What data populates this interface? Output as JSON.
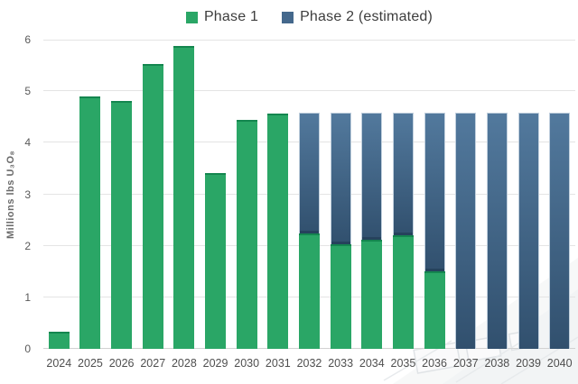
{
  "legend": {
    "items": [
      {
        "label": "Phase 1",
        "color": "#2aa666"
      },
      {
        "label": "Phase 2 (estimated)",
        "color": "#44688c"
      }
    ]
  },
  "colors": {
    "phase1_fill": "#2aa666",
    "phase1_cap": "#14864f",
    "phase2_gradient_top": "#52799d",
    "phase2_gradient_bottom": "#31506e",
    "phase2_legend_swatch": "#44688c",
    "gridline": "#e4e4e4",
    "axis_text": "#595959",
    "legend_text": "#3d3d3d"
  },
  "chart_data": {
    "type": "bar",
    "stacked": true,
    "title": "",
    "xlabel": "",
    "ylabel": "Millions lbs U₃O₈",
    "ylim": [
      0,
      6
    ],
    "yticks": [
      0,
      1,
      2,
      3,
      4,
      5,
      6
    ],
    "grid": true,
    "legend_position": "top-center",
    "categories": [
      "2024",
      "2025",
      "2026",
      "2027",
      "2028",
      "2029",
      "2030",
      "2031",
      "2032",
      "2033",
      "2034",
      "2035",
      "2036",
      "2037",
      "2038",
      "2039",
      "2040"
    ],
    "series": [
      {
        "name": "Phase 1",
        "values": [
          0.33,
          4.9,
          4.81,
          5.52,
          5.87,
          3.42,
          4.44,
          4.56,
          2.24,
          2.03,
          2.11,
          2.21,
          1.5,
          0,
          0,
          0,
          0
        ]
      },
      {
        "name": "Phase 2 (estimated)",
        "values": [
          0,
          0,
          0,
          0,
          0,
          0,
          0,
          0,
          2.34,
          2.55,
          2.47,
          2.37,
          3.08,
          4.58,
          4.58,
          4.58,
          4.58
        ]
      }
    ]
  }
}
